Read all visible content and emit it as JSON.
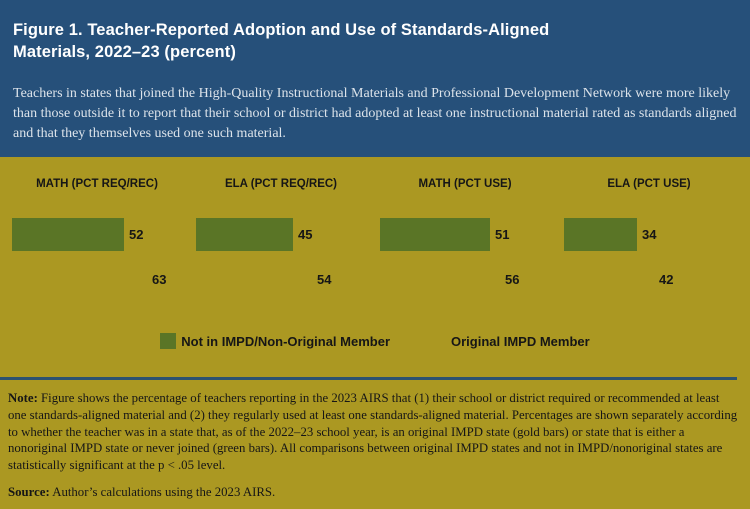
{
  "figure": {
    "title": "Figure 1. Teacher-Reported Adoption and Use of Standards-Aligned Materials, 2022–23 (percent)",
    "subtitle": "Teachers in states that joined the High-Quality Instructional Materials and Professional Development Network were more likely than those outside it to report that their school or district had adopted at least one instructional material rated as standards aligned and that they themselves used one such material."
  },
  "chart_data": {
    "type": "bar",
    "orientation": "horizontal",
    "background": "#ab9822",
    "categories": [
      "MATH (PCT REQ/REC)",
      "ELA (PCT REQ/REC)",
      "MATH (PCT USE)",
      "ELA (PCT USE)"
    ],
    "series": [
      {
        "name": "Not in IMPD/Non-Original Member",
        "color": "#5a7526",
        "values": [
          52,
          45,
          51,
          34
        ]
      },
      {
        "name": "Original IMPD Member",
        "color": "#ab9822",
        "values": [
          63,
          54,
          56,
          42
        ]
      }
    ],
    "value_labels": true,
    "xlim": [
      0,
      87
    ],
    "grid": false,
    "legend_position": "bottom"
  },
  "notes": {
    "note_label": "Note:",
    "note_text": "Figure shows the percentage of teachers reporting in the 2023 AIRS that (1) their school or district required or recommended at least one standards-aligned material and (2) they regularly used at least one standards-aligned material. Percentages are shown separately according to whether the teacher was in a state that, as of the 2022–23 school year, is an original IMPD state (gold bars) or state that is either a nonoriginal IMPD state or never joined (green bars). All comparisons between original IMPD states and not in IMPD/nonoriginal states are statistically significant at the p < .05 level.",
    "source_label": "Source:",
    "source_text": "Author’s calculations using the 2023 AIRS."
  },
  "colors": {
    "header_bg": "#26507a",
    "chart_bg": "#ab9822",
    "divider": "#2c5270",
    "bar_green": "#5a7526",
    "bar_gold": "#ab9822",
    "text_dark": "#161616",
    "title_text": "#ffffff",
    "subtitle_text": "#dce3ea"
  }
}
